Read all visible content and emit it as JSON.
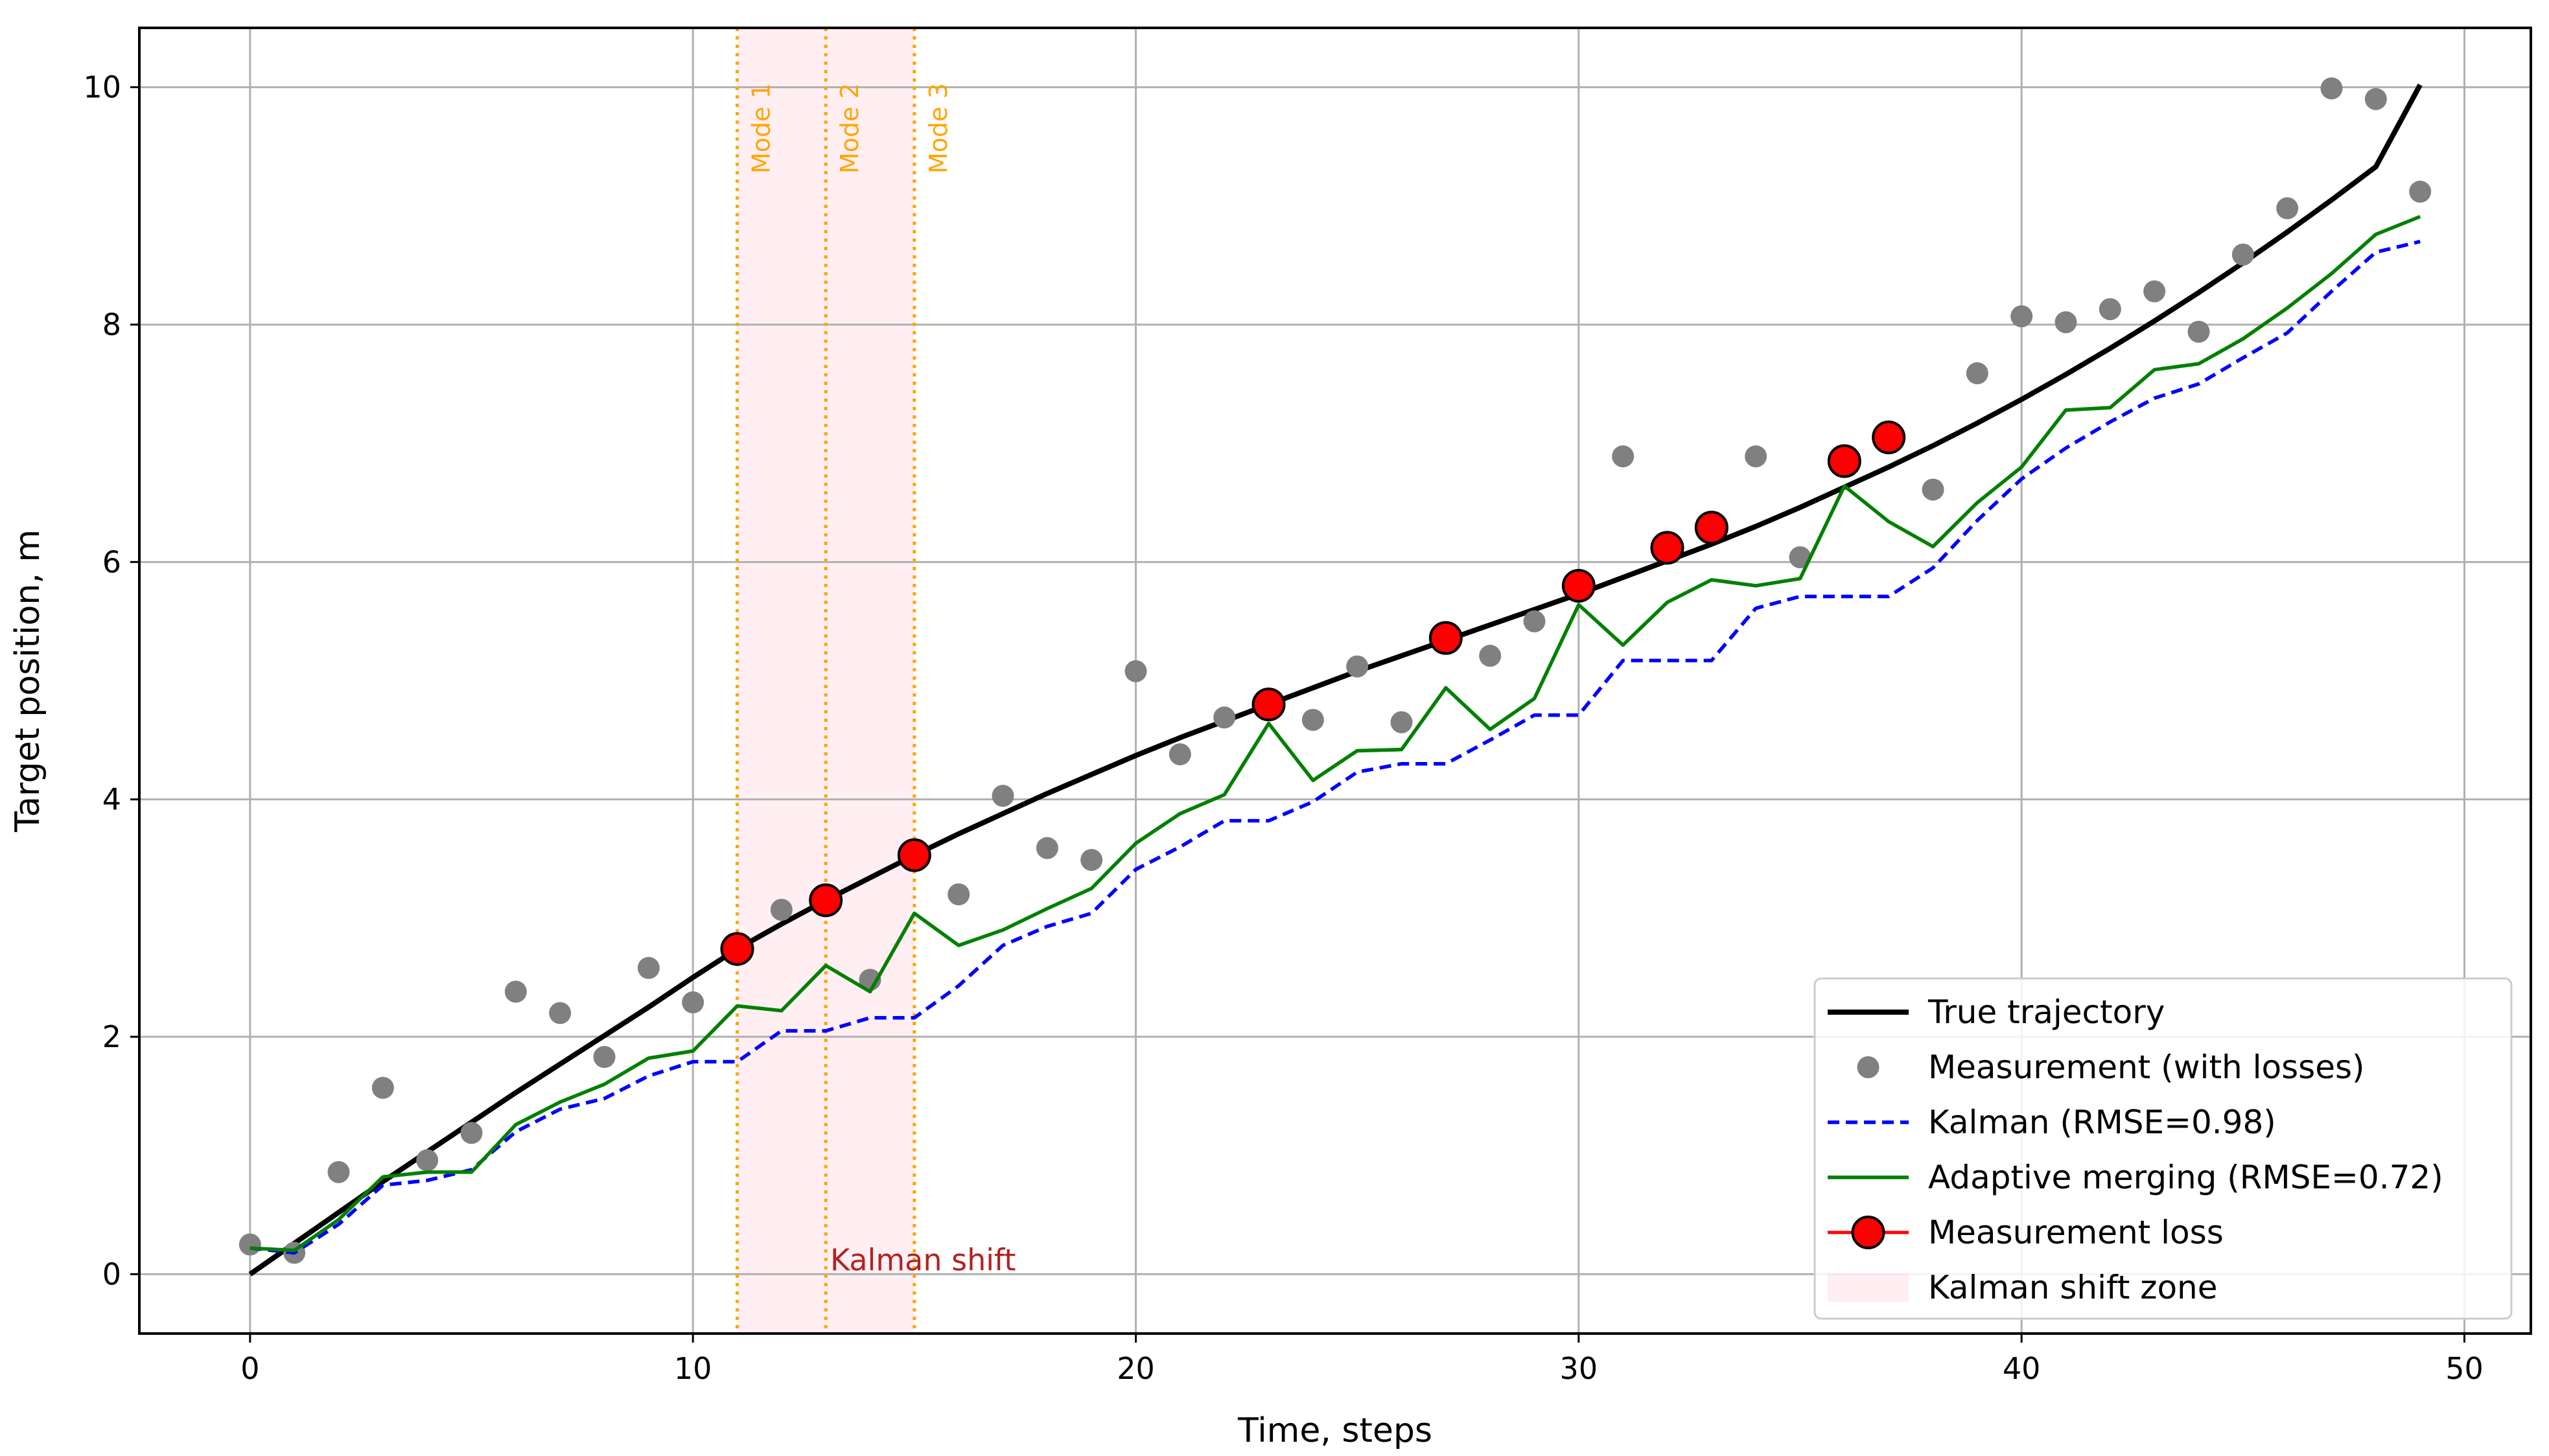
{
  "chart_data": {
    "type": "line",
    "xlabel": "Time, steps",
    "ylabel": "Target position, m",
    "xlim": [
      -2.5,
      51.5
    ],
    "ylim": [
      -0.5,
      10.5
    ],
    "x_ticks": [
      0,
      10,
      20,
      30,
      40,
      50
    ],
    "y_ticks": [
      0,
      2,
      4,
      6,
      8,
      10
    ],
    "x_tick_labels": [
      "0",
      "10",
      "20",
      "30",
      "40",
      "50"
    ],
    "y_tick_labels": [
      "0",
      "2",
      "4",
      "6",
      "8",
      "10"
    ],
    "grid": true,
    "legend_position": "lower-right",
    "x": [
      0,
      1,
      2,
      3,
      4,
      5,
      6,
      7,
      8,
      9,
      10,
      11,
      12,
      13,
      14,
      15,
      16,
      17,
      18,
      19,
      20,
      21,
      22,
      23,
      24,
      25,
      26,
      27,
      28,
      29,
      30,
      31,
      32,
      33,
      34,
      35,
      36,
      37,
      38,
      39,
      40,
      41,
      42,
      43,
      44,
      45,
      46,
      47,
      48,
      49
    ],
    "series": [
      {
        "name": "True trajectory",
        "style": "line",
        "color": "#000000",
        "values": [
          0.0,
          0.26,
          0.52,
          0.78,
          1.03,
          1.28,
          1.53,
          1.77,
          2.01,
          2.25,
          2.5,
          2.74,
          2.95,
          3.15,
          3.34,
          3.53,
          3.71,
          3.88,
          4.05,
          4.21,
          4.37,
          4.52,
          4.66,
          4.8,
          4.94,
          5.08,
          5.21,
          5.34,
          5.47,
          5.6,
          5.73,
          5.87,
          6.01,
          6.15,
          6.3,
          6.46,
          6.63,
          6.8,
          6.98,
          7.17,
          7.37,
          7.58,
          7.8,
          8.03,
          8.27,
          8.52,
          8.78,
          9.05,
          9.33,
          10.02
        ]
      },
      {
        "name": "Measurement (with losses)",
        "style": "scatter",
        "color": "#808080",
        "points": [
          [
            0,
            0.25
          ],
          [
            1,
            0.18
          ],
          [
            2,
            0.86
          ],
          [
            3,
            1.57
          ],
          [
            4,
            0.96
          ],
          [
            5,
            1.19
          ],
          [
            6,
            2.38
          ],
          [
            7,
            2.2
          ],
          [
            8,
            1.83
          ],
          [
            9,
            2.58
          ],
          [
            10,
            2.29
          ],
          [
            12,
            3.07
          ],
          [
            14,
            2.48
          ],
          [
            16,
            3.2
          ],
          [
            17,
            4.03
          ],
          [
            18,
            3.59
          ],
          [
            19,
            3.49
          ],
          [
            20,
            5.08
          ],
          [
            21,
            4.38
          ],
          [
            22,
            4.69
          ],
          [
            24,
            4.67
          ],
          [
            25,
            5.12
          ],
          [
            26,
            4.65
          ],
          [
            28,
            5.21
          ],
          [
            29,
            5.5
          ],
          [
            31,
            6.89
          ],
          [
            34,
            6.89
          ],
          [
            35,
            6.04
          ],
          [
            38,
            6.61
          ],
          [
            39,
            7.59
          ],
          [
            40,
            8.07
          ],
          [
            41,
            8.02
          ],
          [
            42,
            8.13
          ],
          [
            43,
            8.28
          ],
          [
            44,
            7.94
          ],
          [
            45,
            8.59
          ],
          [
            46,
            8.98
          ],
          [
            47,
            9.99
          ],
          [
            48,
            9.9
          ],
          [
            49,
            9.12
          ]
        ]
      },
      {
        "name": "Kalman (RMSE=0.98)",
        "style": "dashed",
        "color": "#0000ff",
        "values": [
          0.22,
          0.18,
          0.42,
          0.75,
          0.79,
          0.88,
          1.2,
          1.39,
          1.48,
          1.67,
          1.79,
          1.79,
          2.05,
          2.05,
          2.16,
          2.16,
          2.43,
          2.77,
          2.93,
          3.04,
          3.41,
          3.6,
          3.82,
          3.82,
          3.98,
          4.23,
          4.3,
          4.3,
          4.5,
          4.71,
          4.71,
          5.17,
          5.17,
          5.17,
          5.61,
          5.71,
          5.71,
          5.71,
          5.95,
          6.35,
          6.7,
          6.96,
          7.18,
          7.38,
          7.5,
          7.72,
          7.93,
          8.28,
          8.61,
          8.7
        ]
      },
      {
        "name": "Adaptive merging (RMSE=0.72)",
        "style": "line",
        "color": "#008000",
        "values": [
          0.22,
          0.2,
          0.46,
          0.82,
          0.86,
          0.86,
          1.26,
          1.45,
          1.6,
          1.82,
          1.88,
          2.26,
          2.22,
          2.6,
          2.38,
          3.04,
          2.77,
          2.9,
          3.08,
          3.25,
          3.63,
          3.88,
          4.04,
          4.64,
          4.16,
          4.41,
          4.42,
          4.94,
          4.59,
          4.85,
          5.64,
          5.3,
          5.66,
          5.85,
          5.8,
          5.86,
          6.64,
          6.34,
          6.13,
          6.5,
          6.8,
          7.28,
          7.3,
          7.62,
          7.67,
          7.88,
          8.14,
          8.43,
          8.76,
          8.91
        ]
      },
      {
        "name": "Measurement loss",
        "style": "markers",
        "color": "#ff0000",
        "points": [
          [
            11,
            2.74
          ],
          [
            13,
            3.15
          ],
          [
            15,
            3.53
          ],
          [
            23,
            4.8
          ],
          [
            27,
            5.36
          ],
          [
            30,
            5.8
          ],
          [
            32,
            6.12
          ],
          [
            33,
            6.29
          ],
          [
            36,
            6.85
          ],
          [
            37,
            7.05
          ]
        ]
      }
    ],
    "shaded_regions": [
      {
        "name": "Kalman shift zone",
        "x_range": [
          11,
          15
        ],
        "color": "#ffc0cb"
      }
    ],
    "vlines": [
      {
        "x": 11,
        "label": "Mode 1",
        "color": "#ffa500"
      },
      {
        "x": 13,
        "label": "Mode 2",
        "color": "#ffa500"
      },
      {
        "x": 15,
        "label": "Mode 3",
        "color": "#ffa500"
      }
    ],
    "annotations": [
      {
        "text": "Kalman shift",
        "x": 13.1,
        "y": 0.0,
        "color": "#b22222"
      }
    ]
  }
}
